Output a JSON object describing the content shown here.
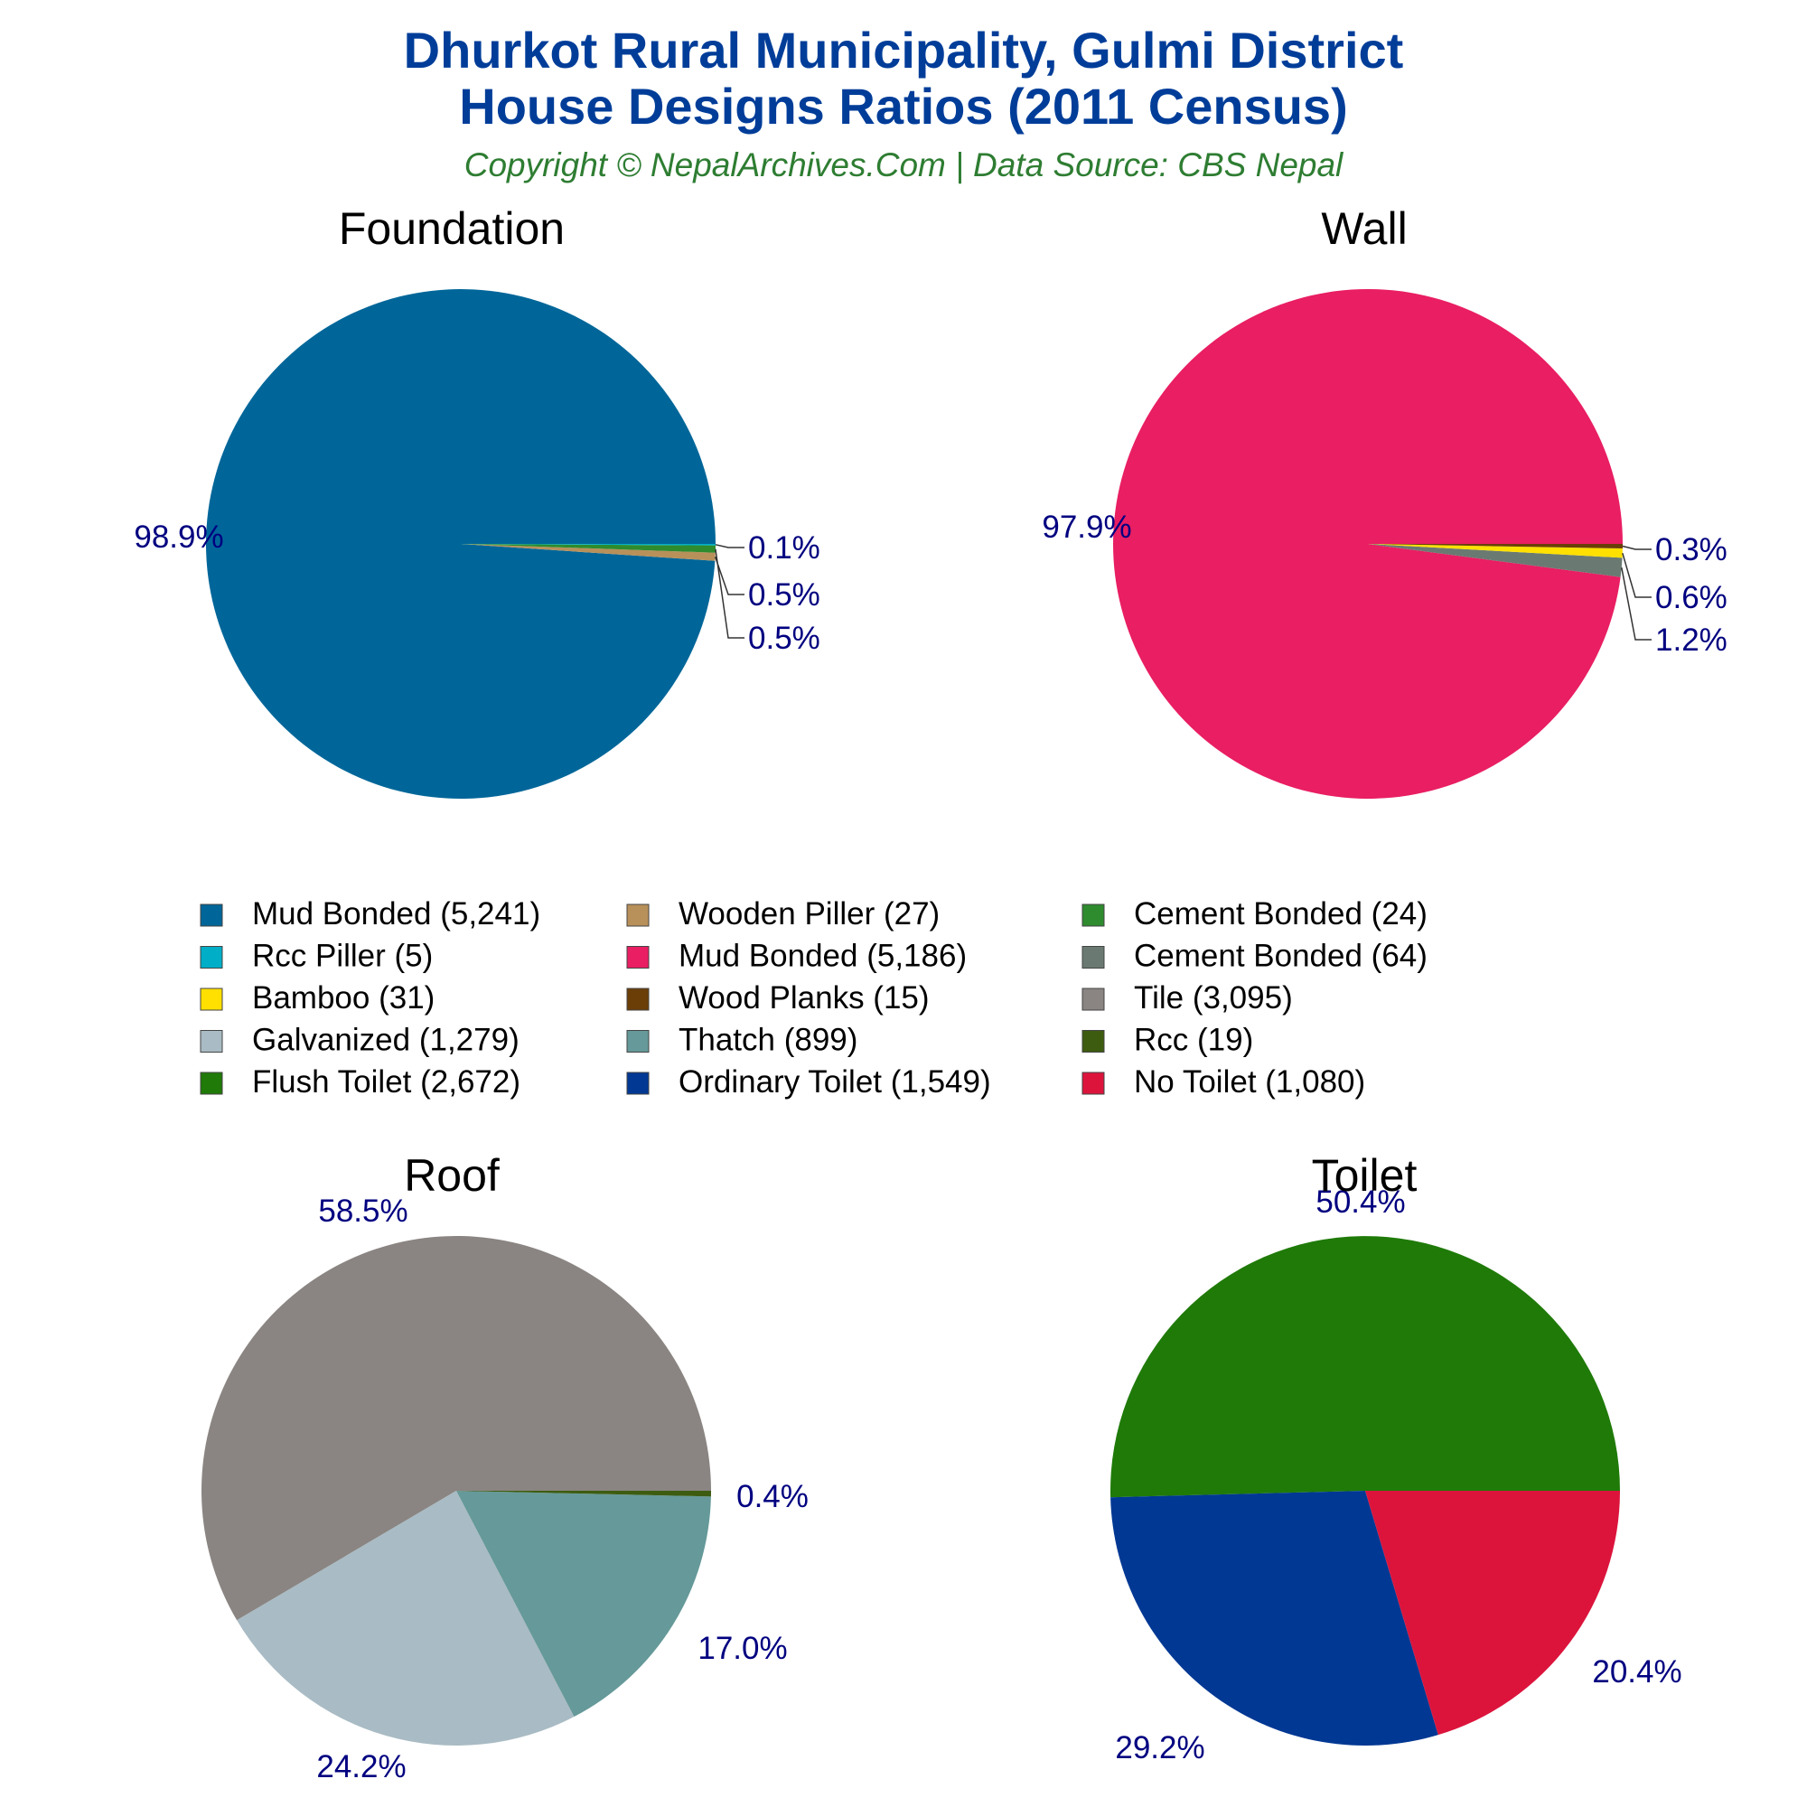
{
  "header": {
    "title_line1": "Dhurkot Rural Municipality, Gulmi District",
    "title_line2": "House Designs Ratios (2011 Census)",
    "subtitle": "Copyright © NepalArchives.Com | Data Source: CBS Nepal"
  },
  "chart_data": [
    {
      "type": "pie",
      "title": "Foundation",
      "series": [
        {
          "name": "Mud Bonded",
          "value": 5241,
          "color": "#006699",
          "label": "98.9%"
        },
        {
          "name": "Wooden Piller",
          "value": 27,
          "color": "#b8905a",
          "label": "0.5%"
        },
        {
          "name": "Cement Bonded",
          "value": 24,
          "color": "#2e8b2e",
          "label": "0.5%"
        },
        {
          "name": "Rcc Piller",
          "value": 5,
          "color": "#00aec7",
          "label": "0.1%"
        }
      ]
    },
    {
      "type": "pie",
      "title": "Wall",
      "series": [
        {
          "name": "Mud Bonded",
          "value": 5186,
          "color": "#e91e63",
          "label": "97.9%"
        },
        {
          "name": "Cement Bonded",
          "value": 64,
          "color": "#6a7a72",
          "label": "1.2%"
        },
        {
          "name": "Bamboo",
          "value": 31,
          "color": "#ffe000",
          "label": "0.6%"
        },
        {
          "name": "Wood Planks",
          "value": 15,
          "color": "#6b3e08",
          "label": "0.3%"
        }
      ]
    },
    {
      "type": "pie",
      "title": "Roof",
      "series": [
        {
          "name": "Tile",
          "value": 3095,
          "color": "#8a8582",
          "label": "58.5%"
        },
        {
          "name": "Galvanized",
          "value": 1279,
          "color": "#a9bbc4",
          "label": "24.2%"
        },
        {
          "name": "Thatch",
          "value": 899,
          "color": "#669999",
          "label": "17.0%"
        },
        {
          "name": "Rcc",
          "value": 19,
          "color": "#3d5c10",
          "label": "0.4%"
        }
      ]
    },
    {
      "type": "pie",
      "title": "Toilet",
      "series": [
        {
          "name": "Flush Toilet",
          "value": 2672,
          "color": "#1f7a08",
          "label": "50.4%"
        },
        {
          "name": "Ordinary Toilet",
          "value": 1549,
          "color": "#003893",
          "label": "29.2%"
        },
        {
          "name": "No Toilet",
          "value": 1080,
          "color": "#dc143c",
          "label": "20.4%"
        }
      ]
    }
  ],
  "legend": [
    {
      "label": "Mud Bonded (5,241)",
      "color": "#006699"
    },
    {
      "label": "Wooden Piller (27)",
      "color": "#b8905a"
    },
    {
      "label": "Cement Bonded (24)",
      "color": "#2e8b2e"
    },
    {
      "label": "Rcc Piller (5)",
      "color": "#00aec7"
    },
    {
      "label": "Mud Bonded (5,186)",
      "color": "#e91e63"
    },
    {
      "label": "Cement Bonded (64)",
      "color": "#6a7a72"
    },
    {
      "label": "Bamboo (31)",
      "color": "#ffe000"
    },
    {
      "label": "Wood Planks (15)",
      "color": "#6b3e08"
    },
    {
      "label": "Tile (3,095)",
      "color": "#8a8582"
    },
    {
      "label": "Galvanized (1,279)",
      "color": "#a9bbc4"
    },
    {
      "label": "Thatch (899)",
      "color": "#669999"
    },
    {
      "label": "Rcc (19)",
      "color": "#3d5c10"
    },
    {
      "label": "Flush Toilet (2,672)",
      "color": "#1f7a08"
    },
    {
      "label": "Ordinary Toilet (1,549)",
      "color": "#003893"
    },
    {
      "label": "No Toilet (1,080)",
      "color": "#dc143c"
    }
  ]
}
